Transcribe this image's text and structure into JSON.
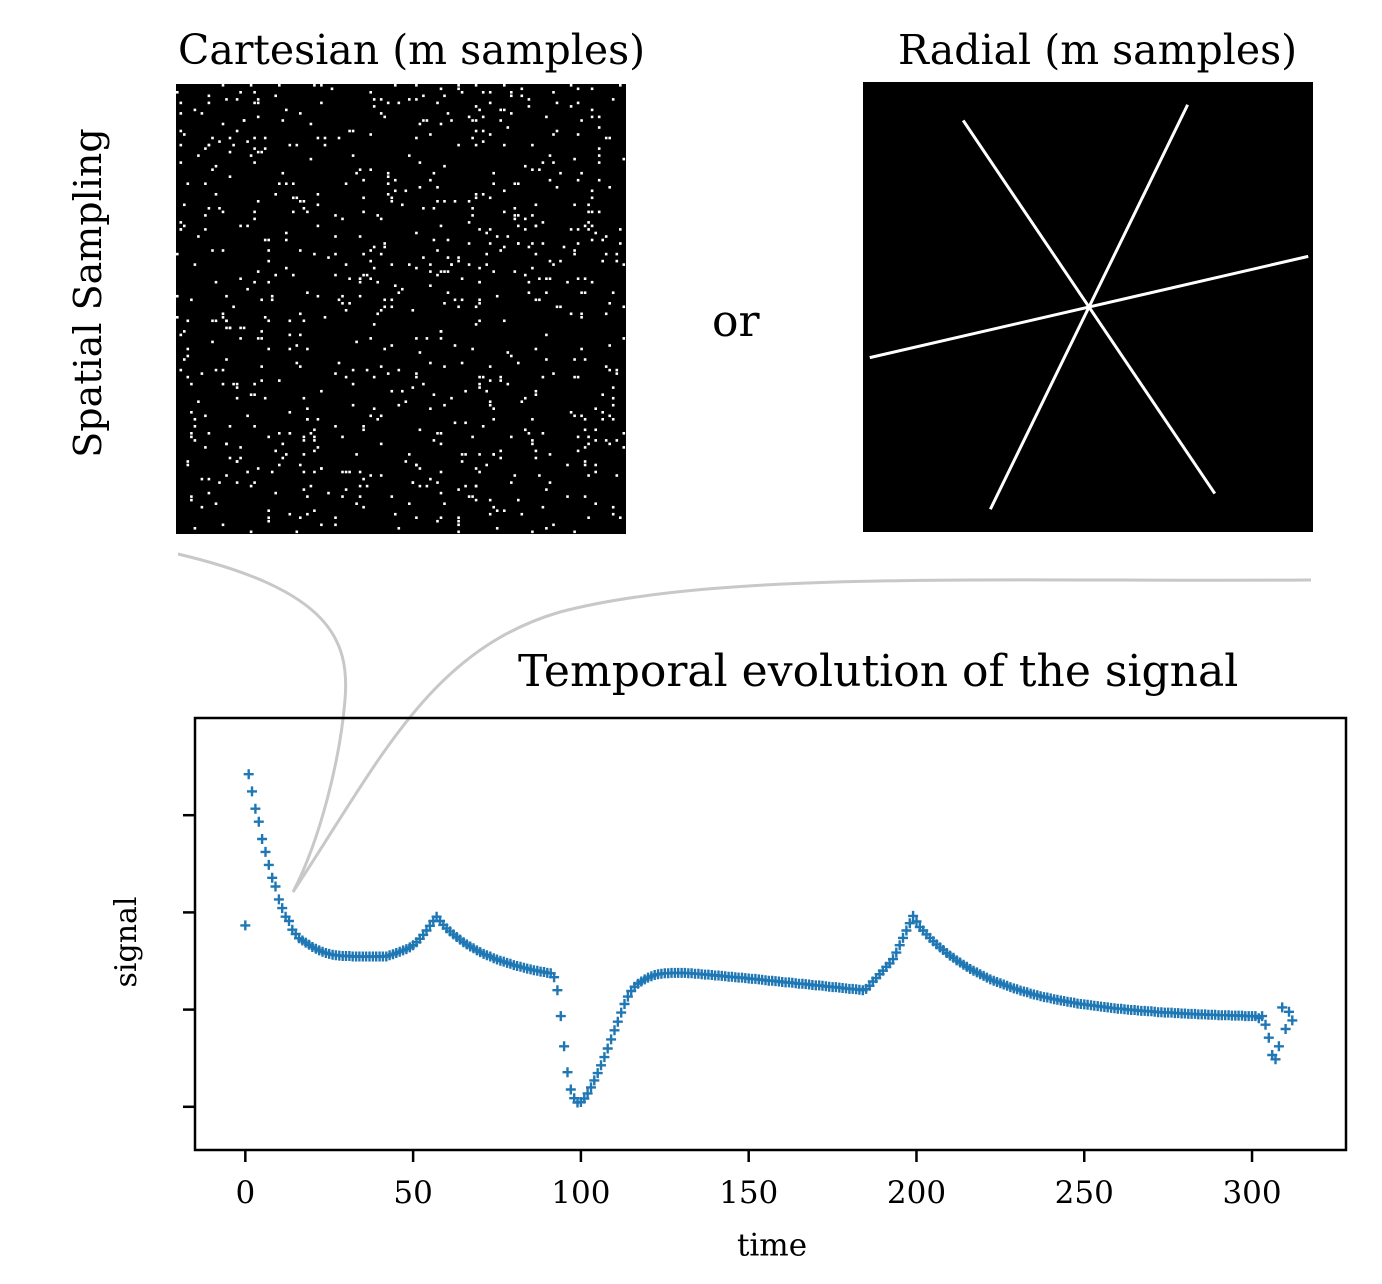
{
  "figure": {
    "cartesian_title": "Cartesian (m samples)",
    "radial_title": "Radial (m samples)",
    "or_label": "or",
    "side_label": "Spatial Sampling",
    "temporal_title": "Temporal evolution of the signal"
  },
  "colors": {
    "mask_background": "#000000",
    "mask_samples": "#ffffff",
    "connector": "#c8c8c8",
    "series": "#1f77b4"
  },
  "radial_mask": {
    "spokes_angle_deg": [
      -13,
      56,
      116
    ]
  },
  "chart_data": {
    "type": "scatter",
    "title": "Temporal evolution of the signal",
    "xlabel": "time",
    "ylabel": "signal",
    "xlim": [
      -15,
      328
    ],
    "x_ticks": [
      "0",
      "50",
      "100",
      "150",
      "200",
      "250",
      "300"
    ],
    "y_tick_labels": "none",
    "marker": "+",
    "series": [
      {
        "name": "signal",
        "x": [
          0,
          1,
          2,
          3,
          4,
          5,
          6,
          7,
          8,
          9,
          10,
          11,
          12,
          13,
          14,
          15,
          16,
          17,
          18,
          19,
          20,
          21,
          22,
          23,
          24,
          25,
          26,
          27,
          28,
          29,
          30,
          31,
          32,
          33,
          34,
          35,
          36,
          37,
          38,
          39,
          40,
          41,
          42,
          43,
          44,
          45,
          46,
          47,
          48,
          49,
          50,
          51,
          52,
          53,
          54,
          55,
          56,
          57,
          58,
          59,
          60,
          61,
          62,
          63,
          64,
          65,
          66,
          67,
          68,
          69,
          70,
          71,
          72,
          73,
          74,
          75,
          76,
          77,
          78,
          79,
          80,
          81,
          82,
          83,
          84,
          85,
          86,
          87,
          88,
          89,
          90,
          91,
          92,
          93,
          94,
          95,
          96,
          97,
          98,
          99,
          100,
          101,
          102,
          103,
          104,
          105,
          106,
          107,
          108,
          109,
          110,
          111,
          112,
          113,
          114,
          115,
          116,
          117,
          118,
          119,
          120,
          121,
          122,
          123,
          124,
          125,
          126,
          127,
          128,
          129,
          130,
          131,
          132,
          133,
          134,
          135,
          136,
          137,
          138,
          139,
          140,
          141,
          142,
          143,
          144,
          145,
          146,
          147,
          148,
          149,
          150,
          151,
          152,
          153,
          154,
          155,
          156,
          157,
          158,
          159,
          160,
          161,
          162,
          163,
          164,
          165,
          166,
          167,
          168,
          169,
          170,
          171,
          172,
          173,
          174,
          175,
          176,
          177,
          178,
          179,
          180,
          181,
          182,
          183,
          184,
          185,
          186,
          187,
          188,
          189,
          190,
          191,
          192,
          193,
          194,
          195,
          196,
          197,
          198,
          199,
          200,
          201,
          202,
          203,
          204,
          205,
          206,
          207,
          208,
          209,
          210,
          211,
          212,
          213,
          214,
          215,
          216,
          217,
          218,
          219,
          220,
          221,
          222,
          223,
          224,
          225,
          226,
          227,
          228,
          229,
          230,
          231,
          232,
          233,
          234,
          235,
          236,
          237,
          238,
          239,
          240,
          241,
          242,
          243,
          244,
          245,
          246,
          247,
          248,
          249,
          250,
          251,
          252,
          253,
          254,
          255,
          256,
          257,
          258,
          259,
          260,
          261,
          262,
          263,
          264,
          265,
          266,
          267,
          268,
          269,
          270,
          271,
          272,
          273,
          274,
          275,
          276,
          277,
          278,
          279,
          280,
          281,
          282,
          283,
          284,
          285,
          286,
          287,
          288,
          289,
          290,
          291,
          292,
          293,
          294,
          295,
          296,
          297,
          298,
          299,
          300,
          301,
          302,
          303,
          304,
          305,
          306,
          307,
          308,
          309,
          310,
          311,
          312
        ],
        "y": [
          0.52,
          0.87,
          0.83,
          0.79,
          0.76,
          0.72,
          0.69,
          0.66,
          0.63,
          0.61,
          0.58,
          0.56,
          0.54,
          0.53,
          0.51,
          0.5,
          0.49,
          0.485,
          0.48,
          0.475,
          0.47,
          0.466,
          0.462,
          0.459,
          0.456,
          0.454,
          0.452,
          0.451,
          0.45,
          0.449,
          0.449,
          0.449,
          0.448,
          0.448,
          0.448,
          0.448,
          0.448,
          0.448,
          0.448,
          0.448,
          0.448,
          0.448,
          0.448,
          0.451,
          0.453,
          0.456,
          0.459,
          0.462,
          0.465,
          0.469,
          0.474,
          0.481,
          0.489,
          0.498,
          0.508,
          0.519,
          0.53,
          0.54,
          0.53,
          0.521,
          0.513,
          0.506,
          0.499,
          0.493,
          0.487,
          0.481,
          0.476,
          0.471,
          0.467,
          0.462,
          0.458,
          0.454,
          0.451,
          0.448,
          0.444,
          0.441,
          0.438,
          0.436,
          0.433,
          0.431,
          0.428,
          0.426,
          0.424,
          0.422,
          0.42,
          0.418,
          0.416,
          0.415,
          0.413,
          0.412,
          0.41,
          0.409,
          0.4,
          0.37,
          0.31,
          0.24,
          0.18,
          0.14,
          0.12,
          0.11,
          0.111,
          0.119,
          0.131,
          0.145,
          0.161,
          0.178,
          0.196,
          0.215,
          0.235,
          0.256,
          0.277,
          0.297,
          0.318,
          0.338,
          0.355,
          0.368,
          0.378,
          0.385,
          0.39,
          0.395,
          0.399,
          0.402,
          0.405,
          0.407,
          0.408,
          0.409,
          0.409,
          0.41,
          0.41,
          0.41,
          0.41,
          0.41,
          0.409,
          0.409,
          0.408,
          0.408,
          0.407,
          0.406,
          0.406,
          0.405,
          0.404,
          0.404,
          0.403,
          0.402,
          0.401,
          0.401,
          0.4,
          0.399,
          0.399,
          0.398,
          0.397,
          0.396,
          0.396,
          0.395,
          0.394,
          0.393,
          0.392,
          0.392,
          0.391,
          0.39,
          0.389,
          0.388,
          0.388,
          0.387,
          0.386,
          0.385,
          0.385,
          0.384,
          0.383,
          0.382,
          0.381,
          0.381,
          0.38,
          0.379,
          0.378,
          0.377,
          0.377,
          0.376,
          0.375,
          0.374,
          0.373,
          0.373,
          0.372,
          0.371,
          0.37,
          0.373,
          0.38,
          0.39,
          0.398,
          0.407,
          0.415,
          0.424,
          0.432,
          0.442,
          0.457,
          0.474,
          0.491,
          0.508,
          0.525,
          0.542,
          0.529,
          0.516,
          0.508,
          0.499,
          0.491,
          0.483,
          0.476,
          0.469,
          0.463,
          0.456,
          0.45,
          0.445,
          0.439,
          0.434,
          0.429,
          0.424,
          0.419,
          0.415,
          0.411,
          0.407,
          0.403,
          0.399,
          0.395,
          0.392,
          0.389,
          0.386,
          0.383,
          0.38,
          0.377,
          0.374,
          0.372,
          0.369,
          0.367,
          0.365,
          0.362,
          0.36,
          0.358,
          0.356,
          0.354,
          0.353,
          0.351,
          0.349,
          0.348,
          0.346,
          0.345,
          0.343,
          0.342,
          0.341,
          0.339,
          0.338,
          0.337,
          0.336,
          0.335,
          0.334,
          0.333,
          0.332,
          0.331,
          0.33,
          0.329,
          0.328,
          0.327,
          0.327,
          0.326,
          0.325,
          0.324,
          0.324,
          0.323,
          0.322,
          0.322,
          0.321,
          0.321,
          0.32,
          0.319,
          0.319,
          0.318,
          0.318,
          0.318,
          0.317,
          0.317,
          0.316,
          0.316,
          0.315,
          0.315,
          0.315,
          0.314,
          0.314,
          0.314,
          0.313,
          0.313,
          0.313,
          0.312,
          0.312,
          0.312,
          0.312,
          0.311,
          0.311,
          0.311,
          0.311,
          0.31,
          0.31,
          0.31,
          0.31,
          0.305,
          0.31,
          0.29,
          0.26,
          0.22,
          0.21,
          0.24,
          0.33,
          0.28,
          0.32,
          0.3
        ]
      }
    ]
  }
}
